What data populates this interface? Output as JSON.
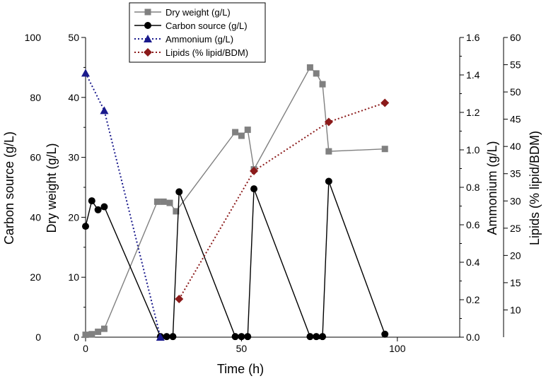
{
  "chart_data": {
    "type": "line",
    "x_axis": {
      "label": "Time (h)",
      "range": [
        0,
        120
      ],
      "ticks": [
        0,
        50,
        100
      ]
    },
    "y_axes": {
      "carbon": {
        "label": "Carbon source (g/L)",
        "range": [
          0,
          100
        ],
        "ticks": [
          0,
          20,
          40,
          60,
          80,
          100
        ]
      },
      "dry": {
        "label": "Dry weight (g/L)",
        "range": [
          0,
          50
        ],
        "ticks": [
          0,
          10,
          20,
          30,
          40,
          50
        ]
      },
      "ammonium": {
        "label": "Ammonium (g/L)",
        "range": [
          0,
          1.6
        ],
        "ticks": [
          "0.0",
          "0.2",
          "0.4",
          "0.6",
          "0.8",
          "1.0",
          "1.2",
          "1.4",
          "1.6"
        ]
      },
      "lipids": {
        "label": "Lipids (% lipid/BDM)",
        "range": [
          5,
          60
        ],
        "ticks": [
          10,
          15,
          20,
          25,
          30,
          35,
          40,
          45,
          50,
          55,
          60
        ]
      }
    },
    "series": [
      {
        "name": "Dry weight (g/L)",
        "axis": "dry",
        "color": "#808080",
        "line_style": "solid",
        "marker": "square",
        "x": [
          0,
          2,
          4,
          6,
          23,
          25,
          27,
          29,
          48,
          50,
          52,
          54,
          72,
          74,
          76,
          78,
          96
        ],
        "y": [
          0.4,
          0.5,
          0.9,
          1.4,
          22.6,
          22.6,
          22.4,
          21.0,
          34.2,
          33.6,
          34.6,
          28.0,
          45.0,
          44.0,
          42.2,
          31.0,
          31.4
        ]
      },
      {
        "name": "Carbon source (g/L)",
        "axis": "carbon",
        "color": "#000000",
        "line_style": "solid",
        "marker": "circle",
        "x": [
          0,
          2,
          4,
          6,
          24,
          26,
          28,
          30,
          48,
          50,
          52,
          54,
          72,
          74,
          76,
          78,
          96
        ],
        "y": [
          37,
          45.5,
          42.5,
          43.5,
          0.2,
          0.2,
          0.2,
          48.5,
          0.2,
          0.2,
          0.2,
          49.5,
          0.2,
          0.2,
          0.2,
          52,
          1
        ]
      },
      {
        "name": "Ammonium (g/L)",
        "axis": "ammonium",
        "color": "#1a1a8c",
        "line_style": "dotted",
        "marker": "triangle",
        "x": [
          0,
          6,
          24
        ],
        "y": [
          1.41,
          1.21,
          0.0
        ]
      },
      {
        "name": "Lipids (% lipid/BDM)",
        "axis": "lipids",
        "color": "#8b1a1a",
        "line_style": "dotted",
        "marker": "diamond",
        "x": [
          30,
          54,
          78,
          96
        ],
        "y": [
          12.0,
          35.5,
          44.5,
          48.0
        ]
      }
    ]
  }
}
